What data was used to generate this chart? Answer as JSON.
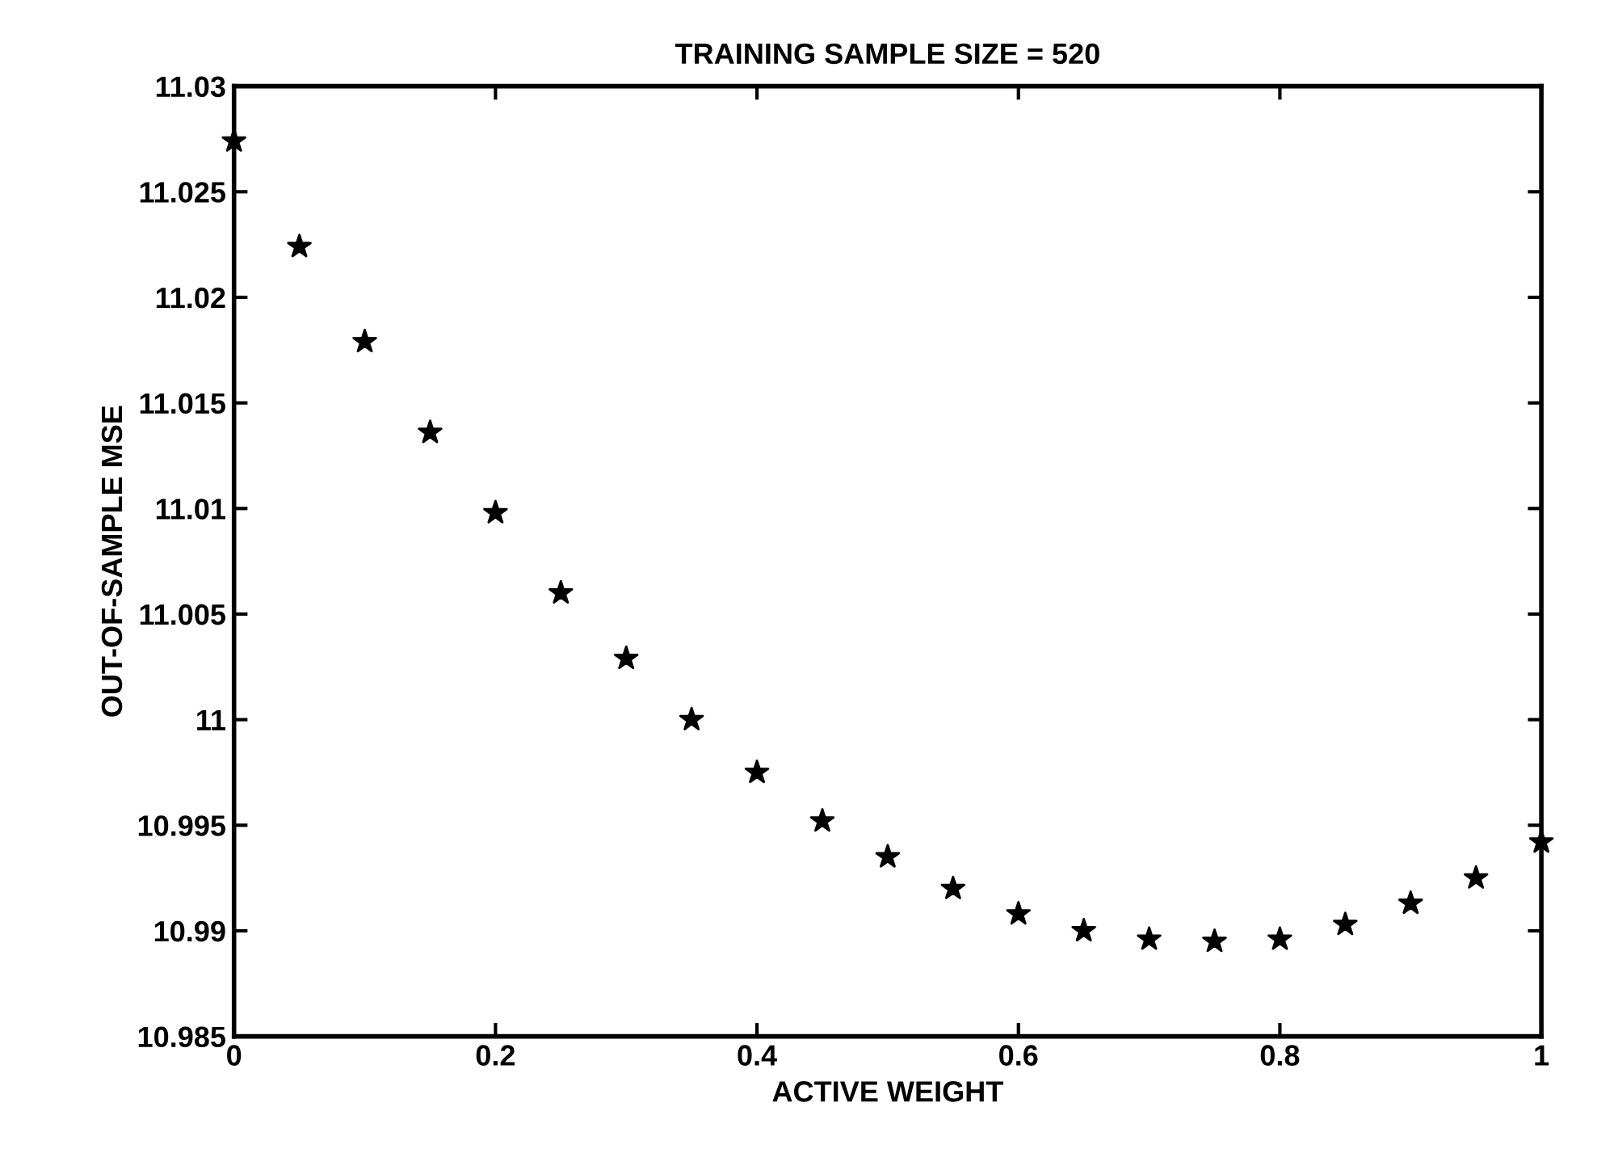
{
  "chart_data": {
    "type": "scatter",
    "title": "TRAINING SAMPLE SIZE = 520",
    "xlabel": "ACTIVE WEIGHT",
    "ylabel": "OUT-OF-SAMPLE MSE",
    "x": [
      0,
      0.05,
      0.1,
      0.15,
      0.2,
      0.25,
      0.3,
      0.35,
      0.4,
      0.45,
      0.5,
      0.55,
      0.6,
      0.65,
      0.7,
      0.75,
      0.8,
      0.85,
      0.9,
      0.95,
      1.0
    ],
    "series": [
      {
        "color": "#000000",
        "values": [
          11.0274,
          11.0224,
          11.0179,
          11.0136,
          11.0098,
          11.006,
          11.0029,
          11.0,
          10.9975,
          10.9952,
          10.9935,
          10.992,
          10.9908,
          10.99,
          10.9896,
          10.9895,
          10.9896,
          10.9903,
          10.9913,
          10.9925,
          10.9942
        ]
      }
    ],
    "xlim": [
      0,
      1
    ],
    "xticks": [
      0,
      0.2,
      0.4,
      0.6,
      0.8,
      1
    ],
    "ylim": [
      10.985,
      11.03
    ],
    "yticks": [
      10.985,
      10.99,
      10.995,
      11,
      11.005,
      11.01,
      11.015,
      11.02,
      11.025,
      11.03
    ],
    "marker": "star",
    "grid": false,
    "legend": false
  }
}
